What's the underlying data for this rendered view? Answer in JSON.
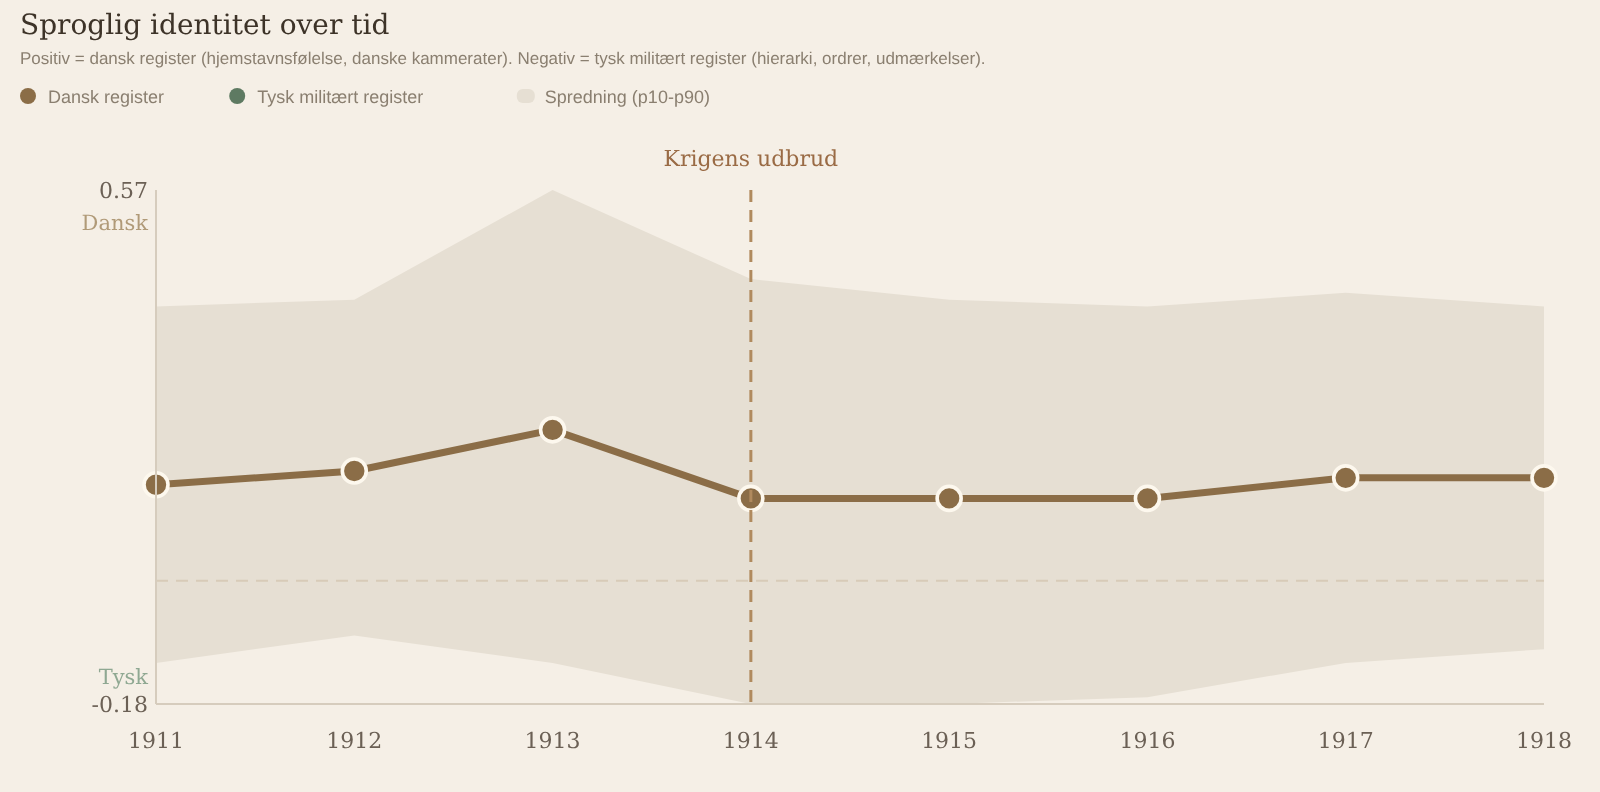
{
  "chart_data": {
    "type": "line",
    "title": "Sproglig identitet over tid",
    "subtitle": "Positiv = dansk register (hjemstavnsfølelse, danske kammerater). Negativ = tysk militært register (hierarki, ordrer, udmærkelser).",
    "x": [
      1911,
      1912,
      1913,
      1914,
      1915,
      1916,
      1917,
      1918
    ],
    "xlim": [
      1911,
      1918
    ],
    "xticks": [
      1911,
      1912,
      1913,
      1914,
      1915,
      1916,
      1917,
      1918
    ],
    "ylim": [
      -0.18,
      0.57
    ],
    "yticks": [
      -0.18,
      0.57
    ],
    "series": [
      {
        "name": "Dansk register",
        "color": "#8b6d47",
        "values": [
          0.14,
          0.16,
          0.22,
          0.12,
          0.12,
          0.12,
          0.15,
          0.15
        ]
      },
      {
        "name": "Tysk militært register",
        "color": "#5e7a62",
        "values": [
          null,
          null,
          null,
          null,
          null,
          null,
          null,
          null
        ]
      },
      {
        "type": "area",
        "name": "Spredning (p10-p90)",
        "color": "#e6dfd3",
        "values": [
          null,
          null,
          null,
          null,
          null,
          null,
          null,
          null
        ],
        "lower": [
          -0.12,
          -0.08,
          -0.12,
          -0.18,
          -0.18,
          -0.17,
          -0.12,
          -0.1
        ],
        "upper": [
          0.4,
          0.41,
          0.57,
          0.44,
          0.41,
          0.4,
          0.42,
          0.4
        ]
      }
    ],
    "annotations": [
      "Dansk",
      "Tysk"
    ],
    "ref_lines": [
      {
        "axis": "x",
        "value": 1914,
        "label": "Krigens udbrud",
        "color": "#b08a5e",
        "line_style": "dashed"
      },
      {
        "axis": "y",
        "value": 0,
        "color": "#d8cbb8",
        "line_style": "dashed"
      }
    ],
    "marker": "circle",
    "grid": false,
    "legend": "top left"
  }
}
